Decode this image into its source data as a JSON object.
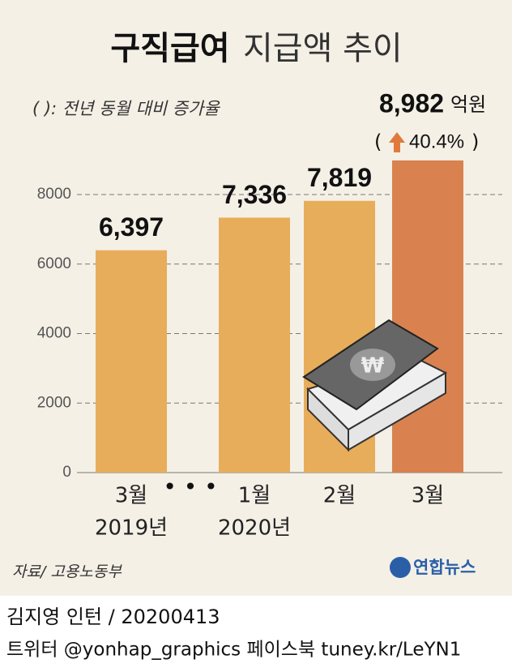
{
  "chart_data": {
    "type": "bar",
    "title_parts": [
      "구직급여",
      "지급액 추이"
    ],
    "note": "( ): 전년 동월 대비 증가율",
    "categories": [
      "3월",
      "1월",
      "2월",
      "3월"
    ],
    "year_labels": [
      "2019년",
      "2020년"
    ],
    "values": [
      6397,
      7336,
      7819,
      8982
    ],
    "value_labels": [
      "6,397",
      "7,336",
      "7,819",
      "8,982"
    ],
    "unit": "억원",
    "annotation": {
      "open": "(",
      "text": "40.4%",
      "close": ")"
    },
    "colors": [
      "#e8ad5a",
      "#e8ad5a",
      "#e8ad5a",
      "#d9824f"
    ],
    "ylim": [
      0,
      8000
    ],
    "yticks": [
      0,
      2000,
      4000,
      6000,
      8000
    ],
    "grid": true,
    "source": "자료/ 고용노동부",
    "logo": "연합뉴스",
    "credit": "김지영 인턴 / 20200413",
    "social": "트위터 @yonhap_graphics  페이스북 tuney.kr/LeYN1"
  }
}
